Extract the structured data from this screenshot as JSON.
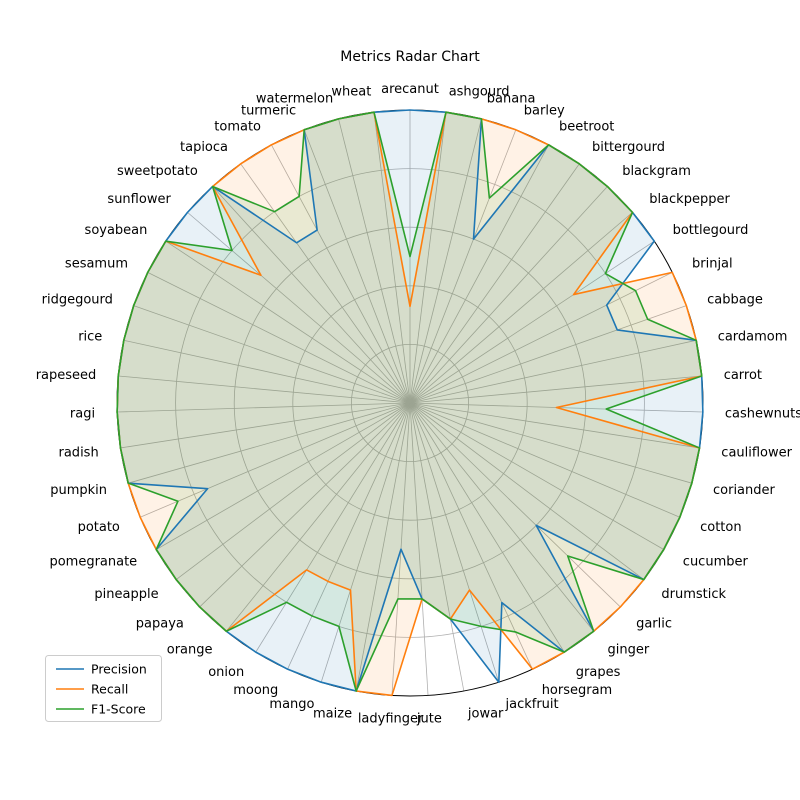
{
  "chart_data": {
    "type": "radar",
    "title": "Metrics Radar Chart",
    "rlim": [
      0,
      1.0
    ],
    "grid": true,
    "legend_position": "lower-left",
    "categories": [
      "arecanut",
      "ashgourd",
      "banana",
      "barley",
      "beetroot",
      "bittergourd",
      "blackgram",
      "blackpepper",
      "bottlegourd",
      "brinjal",
      "cabbage",
      "cardamom",
      "carrot",
      "cashewnuts",
      "cauliflower",
      "coriander",
      "cotton",
      "cucumber",
      "drumstick",
      "garlic",
      "ginger",
      "grapes",
      "horsegram",
      "jackfruit",
      "jowar",
      "jute",
      "ladyfinger",
      "maize",
      "mango",
      "moong",
      "onion",
      "orange",
      "papaya",
      "pineapple",
      "pomegranate",
      "potato",
      "pumpkin",
      "radish",
      "ragi",
      "rapeseed",
      "rice",
      "ridgegourd",
      "sesamum",
      "soyabean",
      "sunflower",
      "sweetpotato",
      "tapioca",
      "tomato",
      "turmeric",
      "watermelon",
      "wheat"
    ],
    "series": [
      {
        "name": "Precision",
        "color": "#1f77b4",
        "values": [
          1.0,
          1.0,
          1.0,
          0.6,
          1.0,
          1.0,
          1.0,
          1.0,
          1.0,
          0.75,
          0.75,
          1.0,
          1.0,
          1.0,
          1.0,
          1.0,
          1.0,
          1.0,
          1.0,
          0.6,
          1.0,
          1.0,
          0.75,
          1.0,
          0.75,
          0.67,
          0.5,
          1.0,
          1.0,
          1.0,
          1.0,
          1.0,
          1.0,
          1.0,
          1.0,
          0.75,
          1.0,
          1.0,
          1.0,
          1.0,
          1.0,
          1.0,
          1.0,
          1.0,
          1.0,
          1.0,
          0.67,
          0.67,
          1.0,
          1.0,
          1.0
        ]
      },
      {
        "name": "Recall",
        "color": "#ff7f0e",
        "values": [
          0.33,
          1.0,
          1.0,
          1.0,
          1.0,
          1.0,
          1.0,
          1.0,
          0.67,
          1.0,
          1.0,
          1.0,
          1.0,
          0.5,
          1.0,
          1.0,
          1.0,
          1.0,
          1.0,
          1.0,
          1.0,
          1.0,
          1.0,
          0.67,
          0.75,
          0.67,
          1.0,
          1.0,
          0.67,
          0.67,
          0.67,
          1.0,
          1.0,
          1.0,
          1.0,
          1.0,
          1.0,
          1.0,
          1.0,
          1.0,
          1.0,
          1.0,
          1.0,
          1.0,
          0.67,
          1.0,
          1.0,
          1.0,
          1.0,
          1.0,
          1.0
        ]
      },
      {
        "name": "F1-Score",
        "color": "#2ca02c",
        "values": [
          0.5,
          1.0,
          1.0,
          0.75,
          1.0,
          1.0,
          1.0,
          1.0,
          0.8,
          0.86,
          0.86,
          1.0,
          1.0,
          0.67,
          1.0,
          1.0,
          1.0,
          1.0,
          1.0,
          0.75,
          1.0,
          1.0,
          0.86,
          0.8,
          0.75,
          0.67,
          0.67,
          1.0,
          0.8,
          0.8,
          0.8,
          1.0,
          1.0,
          1.0,
          1.0,
          0.86,
          1.0,
          1.0,
          1.0,
          1.0,
          1.0,
          1.0,
          1.0,
          1.0,
          0.8,
          1.0,
          0.8,
          0.8,
          1.0,
          1.0,
          1.0
        ]
      }
    ]
  }
}
